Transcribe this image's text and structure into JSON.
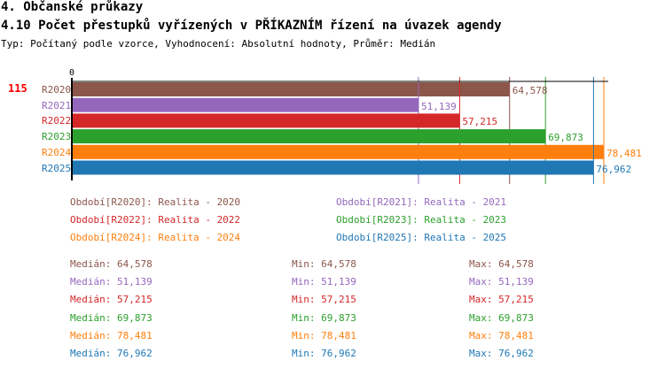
{
  "section_title": "4. Občanské průkazy",
  "chart_title": "4.10 Počet přestupků vyřízených v PŘÍKAZNÍM řízení na úvazek agendy",
  "subtitle": "Typ: Počítaný podle vzorce, Vyhodnocení: Absolutní hodnoty, Průměr: Medián",
  "rank": "115",
  "chart_data": {
    "type": "bar",
    "orientation": "horizontal",
    "x_tick": "0",
    "xlim": [
      0,
      78481
    ],
    "categories": [
      "R2020",
      "R2021",
      "R2022",
      "R2023",
      "R2024",
      "R2025"
    ],
    "values": [
      64578,
      51139,
      57215,
      69873,
      78481,
      76962
    ],
    "labels": [
      "64,578",
      "51,139",
      "57,215",
      "69,873",
      "78,481",
      "76,962"
    ],
    "colors": [
      "#8c564b",
      "#9467bd",
      "#d62728",
      "#2ca02c",
      "#ff7f0e",
      "#1f77b4"
    ],
    "legend": [
      "Období[R2020]: Realita - 2020",
      "Období[R2021]: Realita - 2021",
      "Období[R2022]: Realita - 2022",
      "Období[R2023]: Realita - 2023",
      "Období[R2024]: Realita - 2024",
      "Období[R2025]: Realita - 2025"
    ],
    "stats": [
      {
        "median": "Medián: 64,578",
        "min": "Min: 64,578",
        "max": "Max: 64,578"
      },
      {
        "median": "Medián: 51,139",
        "min": "Min: 51,139",
        "max": "Max: 51,139"
      },
      {
        "median": "Medián: 57,215",
        "min": "Min: 57,215",
        "max": "Max: 57,215"
      },
      {
        "median": "Medián: 69,873",
        "min": "Min: 69,873",
        "max": "Max: 69,873"
      },
      {
        "median": "Medián: 78,481",
        "min": "Min: 78,481",
        "max": "Max: 78,481"
      },
      {
        "median": "Medián: 76,962",
        "min": "Min: 76,962",
        "max": "Max: 76,962"
      }
    ]
  }
}
